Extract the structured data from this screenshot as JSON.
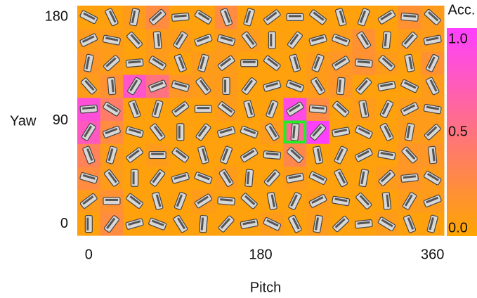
{
  "chart_data": {
    "type": "heatmap",
    "x_label": "Pitch",
    "y_label": "Yaw",
    "x": [
      0,
      24,
      48,
      72,
      96,
      120,
      144,
      168,
      192,
      216,
      240,
      264,
      288,
      312,
      336,
      360
    ],
    "y": [
      0,
      20,
      40,
      60,
      80,
      100,
      120,
      140,
      160,
      180
    ],
    "z": [
      [
        0.05,
        0.25,
        0.05,
        0.05,
        0.05,
        0.05,
        0.05,
        0.05,
        0.1,
        0.05,
        0.1,
        0.05,
        0.05,
        0.1,
        0.05,
        0.05
      ],
      [
        0.1,
        0.2,
        0.05,
        0.05,
        0.05,
        0.1,
        0.05,
        0.05,
        0.05,
        0.05,
        0.1,
        0.05,
        0.05,
        0.05,
        0.1,
        0.1
      ],
      [
        0.25,
        0.1,
        0.05,
        0.05,
        0.05,
        0.05,
        0.1,
        0.05,
        0.05,
        0.1,
        0.05,
        0.05,
        0.05,
        0.1,
        0.15,
        0.1
      ],
      [
        0.35,
        0.1,
        0.05,
        0.1,
        0.05,
        0.05,
        0.05,
        0.05,
        0.05,
        0.3,
        0.05,
        0.05,
        0.05,
        0.05,
        0.15,
        0.15
      ],
      [
        0.75,
        0.25,
        0.05,
        0.05,
        0.05,
        0.05,
        0.05,
        0.05,
        0.1,
        0.6,
        1.0,
        0.05,
        0.05,
        0.05,
        0.1,
        0.1
      ],
      [
        0.85,
        0.4,
        0.05,
        0.05,
        0.05,
        0.05,
        0.1,
        0.05,
        0.05,
        0.9,
        0.25,
        0.05,
        0.1,
        0.05,
        0.1,
        0.1
      ],
      [
        0.1,
        0.2,
        0.8,
        0.5,
        0.15,
        0.1,
        0.1,
        0.05,
        0.05,
        0.05,
        0.1,
        0.15,
        0.05,
        0.05,
        0.05,
        0.1
      ],
      [
        0.15,
        0.1,
        0.05,
        0.1,
        0.05,
        0.1,
        0.1,
        0.05,
        0.05,
        0.05,
        0.1,
        0.15,
        0.2,
        0.1,
        0.05,
        0.2
      ],
      [
        0.1,
        0.1,
        0.05,
        0.1,
        0.1,
        0.05,
        0.1,
        0.1,
        0.05,
        0.05,
        0.05,
        0.1,
        0.2,
        0.05,
        0.1,
        0.1
      ],
      [
        0.05,
        0.05,
        0.1,
        0.25,
        0.05,
        0.05,
        0.25,
        0.05,
        0.05,
        0.05,
        0.05,
        0.05,
        0.05,
        0.05,
        0.2,
        0.1
      ]
    ],
    "xlim": [
      -12,
      372
    ],
    "ylim": [
      -10,
      190
    ],
    "xticks": [
      0,
      180,
      360
    ],
    "yticks": [
      0,
      90,
      180
    ],
    "colormap": [
      "#ffa500",
      "#ff40ff"
    ],
    "highlight": {
      "x": 216,
      "y": 80,
      "color": "#22ee22"
    },
    "colorbar": {
      "label": "Acc.",
      "lim": [
        0,
        1
      ],
      "ticks": [
        {
          "value": 0,
          "label": "0.0"
        },
        {
          "value": 0.5,
          "label": "0.5"
        },
        {
          "value": 1,
          "label": "1.0"
        }
      ]
    }
  }
}
